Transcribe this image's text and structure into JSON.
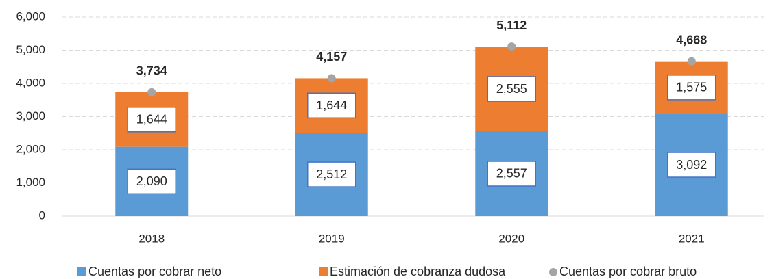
{
  "chart_data": {
    "type": "bar",
    "stacked": true,
    "categories": [
      "2018",
      "2019",
      "2020",
      "2021"
    ],
    "series": [
      {
        "name": "Cuentas por cobrar neto",
        "type": "bar",
        "color": "#5b9bd5",
        "values": [
          2090,
          2512,
          2557,
          3092
        ],
        "value_labels": [
          "2,090",
          "2,512",
          "2,557",
          "3,092"
        ]
      },
      {
        "name": "Estimación de cobranza dudosa",
        "type": "bar",
        "color": "#ed7d31",
        "values": [
          1644,
          1644,
          2555,
          1575
        ],
        "value_labels": [
          "1,644",
          "1,644",
          "2,555",
          "1,575"
        ]
      },
      {
        "name": "Cuentas por cobrar bruto",
        "type": "scatter",
        "color": "#a5a5a5",
        "values": [
          3734,
          4157,
          5112,
          4668
        ],
        "value_labels": [
          "3,734",
          "4,157",
          "5,112",
          "4,668"
        ]
      }
    ],
    "ylim": [
      0,
      6000
    ],
    "yticks": [
      0,
      {
        "value": 1000,
        "label": "1,000"
      },
      {
        "value": 2000,
        "label": "2,000"
      },
      {
        "value": 3000,
        "label": "3,000"
      },
      {
        "value": 4000,
        "label": "4,000"
      },
      {
        "value": 5000,
        "label": "5,000"
      },
      {
        "value": 6000,
        "label": "6,000"
      }
    ],
    "grid": true,
    "legend": "bottom"
  }
}
